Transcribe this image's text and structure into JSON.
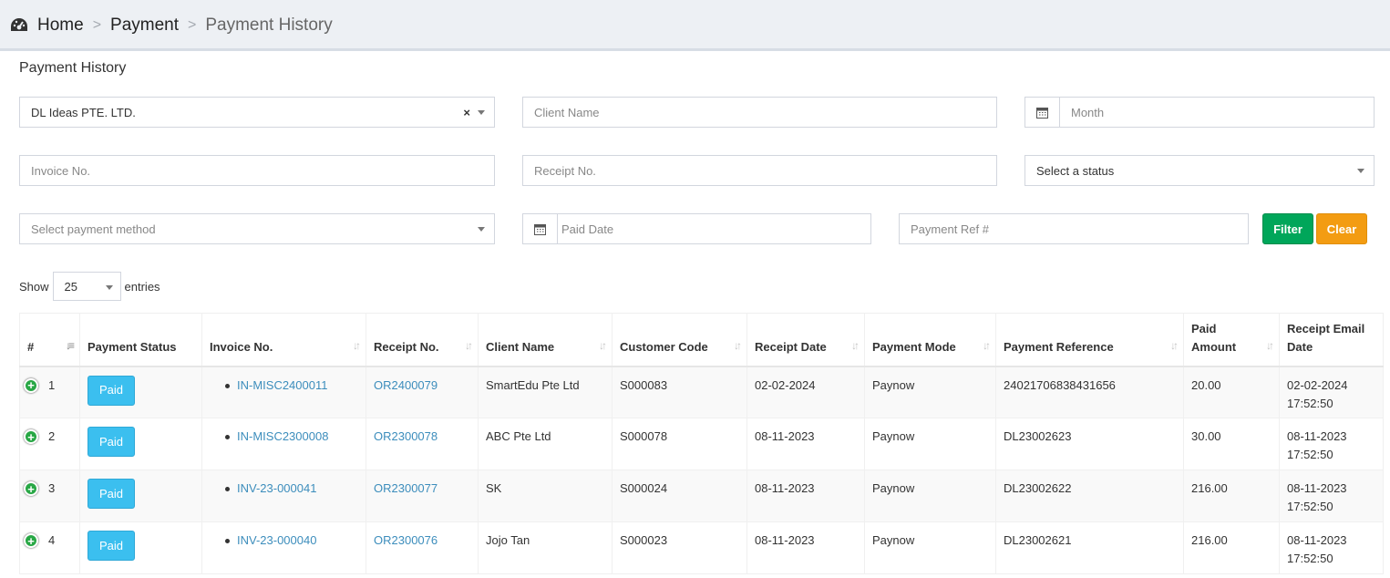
{
  "breadcrumb": {
    "icon": "dashboard-icon",
    "home": "Home",
    "sep": ">",
    "parent": "Payment",
    "current": "Payment History"
  },
  "page": {
    "title": "Payment History"
  },
  "filters": {
    "company": {
      "value": "DL Ideas PTE. LTD.",
      "clear": "×"
    },
    "client_name": {
      "placeholder": "Client Name"
    },
    "month": {
      "placeholder": "Month"
    },
    "invoice_no": {
      "placeholder": "Invoice No."
    },
    "receipt_no": {
      "placeholder": "Receipt No."
    },
    "status": {
      "placeholder": "Select a status"
    },
    "payment_method": {
      "placeholder": "Select payment method"
    },
    "paid_date": {
      "placeholder": "Paid Date"
    },
    "payment_ref": {
      "placeholder": "Payment Ref #"
    },
    "filter_label": "Filter",
    "clear_label": "Clear"
  },
  "entries": {
    "show": "Show",
    "value": "25",
    "suffix": "entries"
  },
  "table": {
    "headers": [
      "#",
      "Payment Status",
      "Invoice No.",
      "Receipt No.",
      "Client Name",
      "Customer Code",
      "Receipt Date",
      "Payment Mode",
      "Payment Reference",
      "Paid Amount",
      "Receipt Email Date"
    ],
    "rows": [
      {
        "num": "1",
        "status": "Paid",
        "invoice": "IN-MISC2400011",
        "receipt": "OR2400079",
        "client": "SmartEdu Pte Ltd",
        "code": "S000083",
        "date": "02-02-2024",
        "mode": "Paynow",
        "ref": "24021706838431656",
        "amount": "20.00",
        "email_date": "02-02-2024",
        "email_time": "17:52:50"
      },
      {
        "num": "2",
        "status": "Paid",
        "invoice": "IN-MISC2300008",
        "receipt": "OR2300078",
        "client": "ABC Pte Ltd",
        "code": "S000078",
        "date": "08-11-2023",
        "mode": "Paynow",
        "ref": "DL23002623",
        "amount": "30.00",
        "email_date": "08-11-2023",
        "email_time": "17:52:50"
      },
      {
        "num": "3",
        "status": "Paid",
        "invoice": "INV-23-000041",
        "receipt": "OR2300077",
        "client": "SK",
        "code": "S000024",
        "date": "08-11-2023",
        "mode": "Paynow",
        "ref": "DL23002622",
        "amount": "216.00",
        "email_date": "08-11-2023",
        "email_time": "17:52:50"
      },
      {
        "num": "4",
        "status": "Paid",
        "invoice": "INV-23-000040",
        "receipt": "OR2300076",
        "client": "Jojo Tan",
        "code": "S000023",
        "date": "08-11-2023",
        "mode": "Paynow",
        "ref": "DL23002621",
        "amount": "216.00",
        "email_date": "08-11-2023",
        "email_time": "17:52:50"
      }
    ]
  },
  "colors": {
    "paid_badge": "#3bbfef",
    "link": "#3c8dbc",
    "filter_btn": "#00a65a",
    "clear_btn": "#f39c12",
    "expand_icon": "#28a745"
  }
}
